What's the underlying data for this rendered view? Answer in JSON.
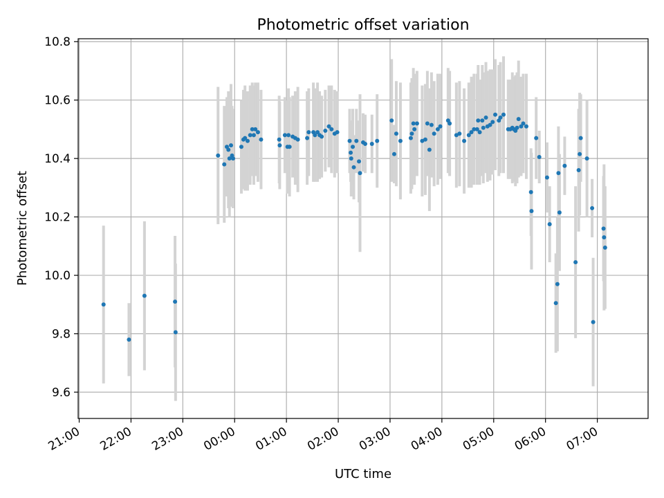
{
  "chart_data": {
    "type": "scatter",
    "title": "Photometric offset variation",
    "xlabel": "UTC time",
    "ylabel": "Photometric offset",
    "x_unit": "hours UTC (values >= 24 are after midnight of the next day)",
    "xlim": [
      20.98,
      31.98
    ],
    "ylim": [
      9.51,
      10.81
    ],
    "x_ticks": [
      21,
      22,
      23,
      24,
      25,
      26,
      27,
      28,
      29,
      30,
      31
    ],
    "x_tick_labels": [
      "21:00",
      "22:00",
      "23:00",
      "00:00",
      "01:00",
      "02:00",
      "03:00",
      "04:00",
      "05:00",
      "06:00",
      "07:00"
    ],
    "y_ticks": [
      9.6,
      9.8,
      10.0,
      10.2,
      10.4,
      10.6,
      10.8
    ],
    "y_tick_labels": [
      "9.6",
      "9.8",
      "10.0",
      "10.2",
      "10.4",
      "10.6",
      "10.8"
    ],
    "grid": true,
    "colors": {
      "points": "#1f77b4",
      "errorbars": "#d3d3d3",
      "grid": "#b0b0b0"
    },
    "series": [
      {
        "points": [
          [
            21.47,
            9.9,
            0.27
          ],
          [
            21.96,
            9.78,
            0.125
          ],
          [
            22.26,
            9.93,
            0.255
          ],
          [
            22.85,
            9.91,
            0.225
          ],
          [
            22.86,
            9.805,
            0.235
          ],
          [
            23.68,
            10.41,
            0.235
          ],
          [
            23.8,
            10.38,
            0.2
          ],
          [
            23.85,
            10.44,
            0.17
          ],
          [
            23.88,
            10.43,
            0.2
          ],
          [
            23.9,
            10.4,
            0.2
          ],
          [
            23.93,
            10.445,
            0.21
          ],
          [
            23.95,
            10.41,
            0.17
          ],
          [
            23.97,
            10.4,
            0.17
          ],
          [
            24.13,
            10.44,
            0.16
          ],
          [
            24.17,
            10.465,
            0.17
          ],
          [
            24.2,
            10.47,
            0.18
          ],
          [
            24.25,
            10.46,
            0.17
          ],
          [
            24.3,
            10.48,
            0.17
          ],
          [
            24.34,
            10.5,
            0.16
          ],
          [
            24.37,
            10.48,
            0.17
          ],
          [
            24.4,
            10.5,
            0.16
          ],
          [
            24.45,
            10.49,
            0.17
          ],
          [
            24.51,
            10.465,
            0.17
          ],
          [
            24.86,
            10.465,
            0.15
          ],
          [
            24.87,
            10.445,
            0.15
          ],
          [
            24.97,
            10.48,
            0.13
          ],
          [
            25.02,
            10.44,
            0.16
          ],
          [
            25.04,
            10.48,
            0.16
          ],
          [
            25.06,
            10.44,
            0.17
          ],
          [
            25.12,
            10.475,
            0.14
          ],
          [
            25.17,
            10.47,
            0.16
          ],
          [
            25.22,
            10.465,
            0.18
          ],
          [
            25.4,
            10.47,
            0.16
          ],
          [
            25.43,
            10.49,
            0.15
          ],
          [
            25.52,
            10.49,
            0.17
          ],
          [
            25.55,
            10.48,
            0.16
          ],
          [
            25.6,
            10.49,
            0.17
          ],
          [
            25.64,
            10.48,
            0.15
          ],
          [
            25.68,
            10.475,
            0.14
          ],
          [
            25.75,
            10.495,
            0.14
          ],
          [
            25.82,
            10.51,
            0.14
          ],
          [
            25.87,
            10.5,
            0.15
          ],
          [
            25.93,
            10.485,
            0.15
          ],
          [
            25.98,
            10.49,
            0.14
          ],
          [
            26.22,
            10.46,
            0.11
          ],
          [
            26.24,
            10.42,
            0.1
          ],
          [
            26.25,
            10.4,
            0.13
          ],
          [
            26.28,
            10.44,
            0.13
          ],
          [
            26.3,
            10.37,
            0.11
          ],
          [
            26.35,
            10.46,
            0.11
          ],
          [
            26.4,
            10.39,
            0.14
          ],
          [
            26.42,
            10.35,
            0.27
          ],
          [
            26.48,
            10.455,
            0.1
          ],
          [
            26.52,
            10.45,
            0.1
          ],
          [
            26.65,
            10.45,
            0.1
          ],
          [
            26.75,
            10.46,
            0.16
          ],
          [
            27.03,
            10.53,
            0.21
          ],
          [
            27.08,
            10.415,
            0.1
          ],
          [
            27.12,
            10.485,
            0.18
          ],
          [
            27.2,
            10.46,
            0.2
          ],
          [
            27.4,
            10.47,
            0.19
          ],
          [
            27.42,
            10.485,
            0.19
          ],
          [
            27.45,
            10.52,
            0.19
          ],
          [
            27.47,
            10.5,
            0.19
          ],
          [
            27.52,
            10.52,
            0.18
          ],
          [
            27.62,
            10.46,
            0.19
          ],
          [
            27.68,
            10.465,
            0.19
          ],
          [
            27.72,
            10.52,
            0.18
          ],
          [
            27.76,
            10.43,
            0.21
          ],
          [
            27.8,
            10.515,
            0.18
          ],
          [
            27.85,
            10.485,
            0.18
          ],
          [
            27.92,
            10.5,
            0.19
          ],
          [
            27.97,
            10.51,
            0.18
          ],
          [
            28.12,
            10.53,
            0.18
          ],
          [
            28.15,
            10.52,
            0.18
          ],
          [
            28.28,
            10.48,
            0.18
          ],
          [
            28.34,
            10.485,
            0.18
          ],
          [
            28.43,
            10.46,
            0.18
          ],
          [
            28.52,
            10.48,
            0.18
          ],
          [
            28.57,
            10.49,
            0.19
          ],
          [
            28.62,
            10.5,
            0.19
          ],
          [
            28.68,
            10.5,
            0.19
          ],
          [
            28.7,
            10.53,
            0.19
          ],
          [
            28.73,
            10.49,
            0.18
          ],
          [
            28.78,
            10.53,
            0.19
          ],
          [
            28.8,
            10.505,
            0.19
          ],
          [
            28.85,
            10.54,
            0.19
          ],
          [
            28.88,
            10.51,
            0.19
          ],
          [
            28.93,
            10.515,
            0.19
          ],
          [
            28.98,
            10.525,
            0.18
          ],
          [
            29.03,
            10.55,
            0.19
          ],
          [
            29.1,
            10.53,
            0.19
          ],
          [
            29.13,
            10.54,
            0.19
          ],
          [
            29.19,
            10.55,
            0.2
          ],
          [
            29.28,
            10.5,
            0.17
          ],
          [
            29.32,
            10.5,
            0.17
          ],
          [
            29.36,
            10.505,
            0.19
          ],
          [
            29.39,
            10.5,
            0.18
          ],
          [
            29.42,
            10.495,
            0.19
          ],
          [
            29.45,
            10.505,
            0.19
          ],
          [
            29.48,
            10.535,
            0.2
          ],
          [
            29.53,
            10.51,
            0.17
          ],
          [
            29.57,
            10.52,
            0.17
          ],
          [
            29.63,
            10.51,
            0.18
          ],
          [
            29.72,
            10.285,
            0.15
          ],
          [
            29.73,
            10.22,
            0.2
          ],
          [
            29.82,
            10.47,
            0.14
          ],
          [
            29.88,
            10.405,
            0.09
          ],
          [
            30.03,
            10.335,
            0.12
          ],
          [
            30.08,
            10.175,
            0.13
          ],
          [
            30.2,
            9.905,
            0.17
          ],
          [
            30.23,
            9.97,
            0.23
          ],
          [
            30.25,
            10.35,
            0.16
          ],
          [
            30.27,
            10.215,
            0.2
          ],
          [
            30.37,
            10.375,
            0.1
          ],
          [
            30.58,
            10.045,
            0.26
          ],
          [
            30.64,
            10.36,
            0.21
          ],
          [
            30.66,
            10.415,
            0.21
          ],
          [
            30.68,
            10.47,
            0.15
          ],
          [
            30.8,
            10.4,
            0.2
          ],
          [
            30.9,
            10.23,
            0.1
          ],
          [
            30.92,
            9.84,
            0.22
          ],
          [
            31.12,
            10.16,
            0.18
          ],
          [
            31.13,
            10.13,
            0.25
          ],
          [
            31.15,
            10.095,
            0.21
          ]
        ]
      }
    ]
  }
}
